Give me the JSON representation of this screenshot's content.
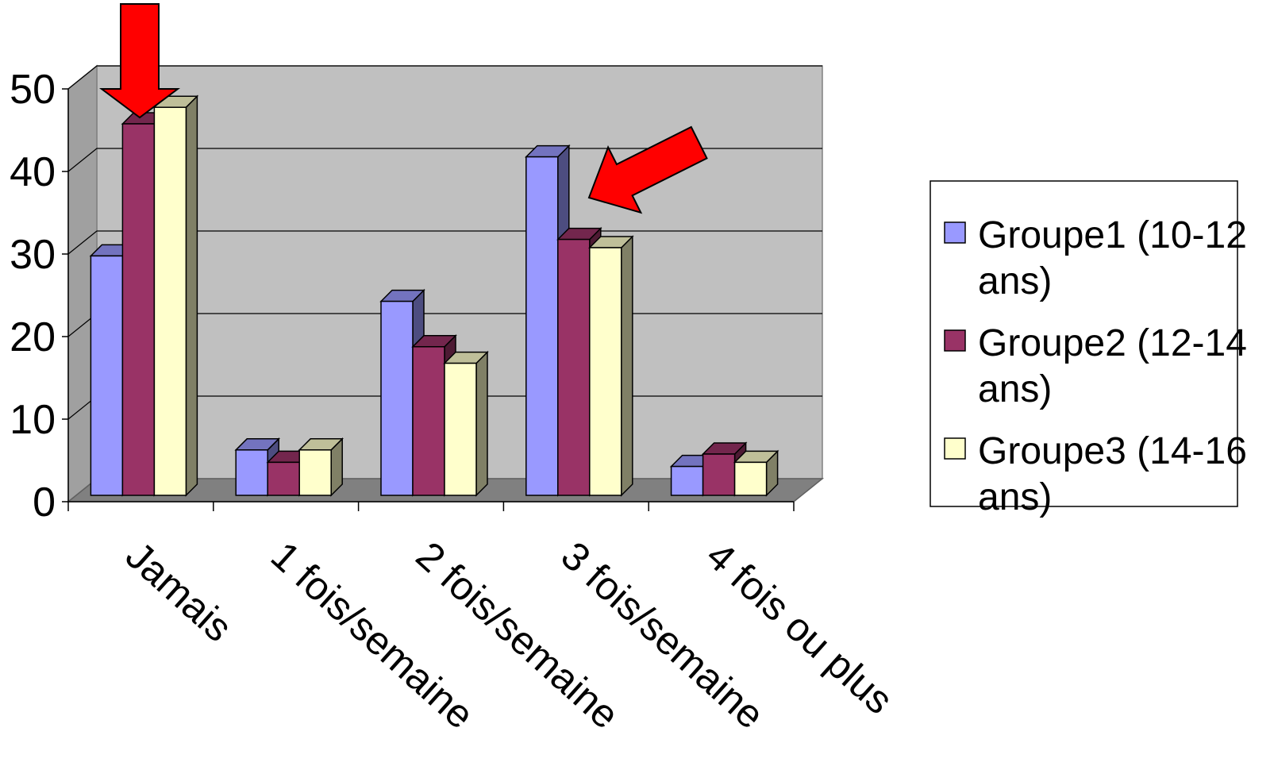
{
  "chart_data": {
    "type": "bar",
    "title": "",
    "xlabel": "",
    "ylabel": "",
    "ylim": [
      0,
      50
    ],
    "yticks": [
      "0",
      "10",
      "20",
      "30",
      "40",
      "50"
    ],
    "categories": [
      "Jamais",
      "1 fois/semaine",
      "2 fois/semaine",
      "3 fois/semaine",
      "4 fois ou plus"
    ],
    "series": [
      {
        "name": "Groupe1 (10-12 ans)",
        "legend_lines": [
          "Groupe1 (10-12",
          "ans)"
        ],
        "color": "#9999ff",
        "values": [
          29,
          5.5,
          23.5,
          41,
          3.5
        ]
      },
      {
        "name": "Groupe2 (12-14 ans)",
        "legend_lines": [
          "Groupe2 (12-14",
          "ans)"
        ],
        "color": "#993366",
        "values": [
          45,
          4,
          18,
          31,
          5
        ]
      },
      {
        "name": "Groupe3 (14-16 ans)",
        "legend_lines": [
          "Groupe3 (14-16",
          "ans)"
        ],
        "color": "#ffffcc",
        "values": [
          47,
          5.5,
          16,
          30,
          4
        ]
      }
    ],
    "grid": true,
    "legend_position": "right",
    "style": "3d-clustered-column",
    "annotations": [
      {
        "type": "arrow",
        "color": "#ff0000",
        "target": "Jamais"
      },
      {
        "type": "arrow",
        "color": "#ff0000",
        "target": "3 fois/semaine"
      }
    ]
  }
}
